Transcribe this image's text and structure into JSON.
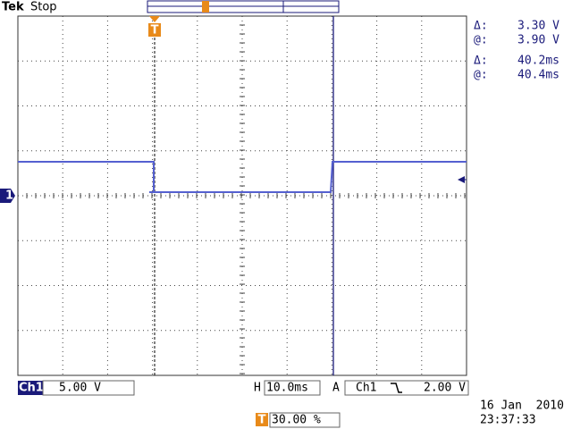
{
  "header": {
    "brand": "Tek",
    "status": "Stop",
    "trigger_marker": "T"
  },
  "channel_marker": "1",
  "cursor_readouts": [
    {
      "label": "Δ:",
      "value": "3.30 V"
    },
    {
      "label": "@:",
      "value": "3.90 V"
    },
    {
      "label": "Δ:",
      "value": "40.2ms"
    },
    {
      "label": "@:",
      "value": "40.4ms"
    }
  ],
  "footer": {
    "channel": "Ch1",
    "volts_per_div": "5.00 V",
    "horizontal_label": "H",
    "time_per_div": "10.0ms",
    "trigger_mode": "A",
    "trigger_source": "Ch1",
    "trigger_level": "2.00 V",
    "trigger_position_marker": "T",
    "trigger_position": "30.00 %",
    "date": "16 Jan  2010",
    "time": "23:37:33"
  }
}
